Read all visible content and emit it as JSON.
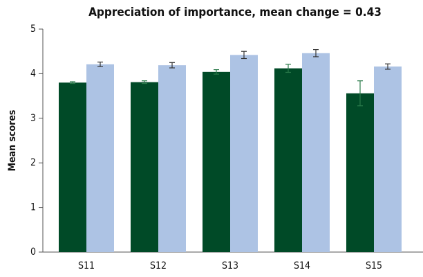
{
  "chart_data": {
    "type": "bar",
    "title": "Appreciation of importance, mean change = 0.43",
    "ylabel": "Mean scores",
    "categories": [
      "S11",
      "S12",
      "S13",
      "S14",
      "S15"
    ],
    "series": [
      {
        "color": "#004a27",
        "values": [
          3.8,
          3.81,
          4.04,
          4.12,
          3.56
        ],
        "errors": [
          0.02,
          0.03,
          0.05,
          0.09,
          0.28
        ]
      },
      {
        "color": "#adc3e4",
        "values": [
          4.21,
          4.19,
          4.42,
          4.46,
          4.16
        ],
        "errors": [
          0.05,
          0.06,
          0.08,
          0.08,
          0.06
        ]
      }
    ],
    "ylim": [
      0,
      5
    ],
    "yticks": [
      0,
      1,
      2,
      3,
      4,
      5
    ],
    "grid": false
  }
}
